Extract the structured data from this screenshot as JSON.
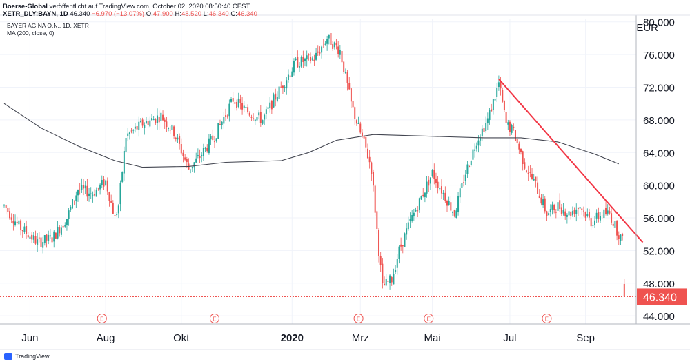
{
  "header": {
    "publisher": "Boerse-Global",
    "published_text": "veröffentlicht auf TradingView.com, October 02, 2020 08:50:40 CEST",
    "symbol_line": "XETR_DLY:BAYN, 1D",
    "last": "46.340",
    "change": "−6.970 (−13.07%)",
    "o_label": "O:",
    "o": "47.900",
    "h_label": "H:",
    "h": "48.520",
    "l_label": "L:",
    "l": "46.340",
    "c_label": "C:",
    "c": "46.340"
  },
  "legend": {
    "instrument": "BAYER AG NA O.N., 1D, XETR",
    "ma_label": "MA (200, close, 0)"
  },
  "footer": {
    "brand": "TradingView"
  },
  "colors": {
    "up": "#26a69a",
    "down": "#ef5350",
    "ma": "#434651",
    "trend": "#f23645",
    "grid": "#f0f3fa",
    "axis": "#131722"
  },
  "chart_data": {
    "type": "candlestick",
    "currency": "EUR",
    "ylim": [
      43,
      80.4
    ],
    "y_ticks": [
      44,
      48,
      52,
      56,
      60,
      64,
      68,
      72,
      76,
      80
    ],
    "y_tick_labels": [
      "44.000",
      "48.000",
      "52.000",
      "56.000",
      "60.000",
      "64.000",
      "68.000",
      "72.000",
      "76.000",
      "80.000"
    ],
    "x_labels": [
      "Jun",
      "Aug",
      "Okt",
      "2020",
      "Mrz",
      "Mai",
      "Jul",
      "Sep"
    ],
    "last_price": 46.34,
    "last_price_label": "46.340",
    "events": [
      "E",
      "E",
      "E",
      "E",
      "E"
    ],
    "price_path": [
      {
        "i": 0,
        "p": 57.5
      },
      {
        "i": 8,
        "p": 55.0
      },
      {
        "i": 18,
        "p": 53.0
      },
      {
        "i": 26,
        "p": 53.5
      },
      {
        "i": 34,
        "p": 56.0
      },
      {
        "i": 40,
        "p": 59.5
      },
      {
        "i": 48,
        "p": 59.0
      },
      {
        "i": 55,
        "p": 60.5
      },
      {
        "i": 60,
        "p": 56.0
      },
      {
        "i": 62,
        "p": 57.5
      },
      {
        "i": 66,
        "p": 66.0
      },
      {
        "i": 75,
        "p": 67.5
      },
      {
        "i": 85,
        "p": 68.5
      },
      {
        "i": 92,
        "p": 66.5
      },
      {
        "i": 100,
        "p": 62.0
      },
      {
        "i": 106,
        "p": 63.5
      },
      {
        "i": 114,
        "p": 66.0
      },
      {
        "i": 124,
        "p": 70.5
      },
      {
        "i": 132,
        "p": 69.0
      },
      {
        "i": 140,
        "p": 68.0
      },
      {
        "i": 150,
        "p": 72.0
      },
      {
        "i": 158,
        "p": 75.0
      },
      {
        "i": 168,
        "p": 75.5
      },
      {
        "i": 175,
        "p": 78.0
      },
      {
        "i": 182,
        "p": 76.5
      },
      {
        "i": 188,
        "p": 70.0
      },
      {
        "i": 192,
        "p": 67.0
      },
      {
        "i": 196,
        "p": 64.5
      },
      {
        "i": 199,
        "p": 62.0
      },
      {
        "i": 203,
        "p": 52.0
      },
      {
        "i": 205,
        "p": 47.5
      },
      {
        "i": 210,
        "p": 48.5
      },
      {
        "i": 214,
        "p": 52.0
      },
      {
        "i": 220,
        "p": 55.5
      },
      {
        "i": 226,
        "p": 58.5
      },
      {
        "i": 232,
        "p": 61.5
      },
      {
        "i": 238,
        "p": 59.0
      },
      {
        "i": 244,
        "p": 56.5
      },
      {
        "i": 250,
        "p": 61.5
      },
      {
        "i": 256,
        "p": 65.5
      },
      {
        "i": 262,
        "p": 68.0
      },
      {
        "i": 268,
        "p": 72.5
      },
      {
        "i": 272,
        "p": 67.5
      },
      {
        "i": 276,
        "p": 66.5
      },
      {
        "i": 282,
        "p": 62.5
      },
      {
        "i": 288,
        "p": 60.0
      },
      {
        "i": 294,
        "p": 56.5
      },
      {
        "i": 300,
        "p": 57.5
      },
      {
        "i": 306,
        "p": 56.5
      },
      {
        "i": 312,
        "p": 57.5
      },
      {
        "i": 318,
        "p": 55.5
      },
      {
        "i": 324,
        "p": 56.5
      },
      {
        "i": 328,
        "p": 56.5
      },
      {
        "i": 332,
        "p": 54.5
      },
      {
        "i": 335,
        "p": 53.2
      },
      {
        "i": 336,
        "p": 46.34
      }
    ],
    "ma200_path": [
      {
        "i": 0,
        "p": 70.0
      },
      {
        "i": 20,
        "p": 67.0
      },
      {
        "i": 40,
        "p": 64.8
      },
      {
        "i": 60,
        "p": 63.0
      },
      {
        "i": 75,
        "p": 62.2
      },
      {
        "i": 100,
        "p": 62.3
      },
      {
        "i": 120,
        "p": 62.8
      },
      {
        "i": 150,
        "p": 63.0
      },
      {
        "i": 165,
        "p": 64.0
      },
      {
        "i": 180,
        "p": 65.5
      },
      {
        "i": 200,
        "p": 66.2
      },
      {
        "i": 230,
        "p": 66.0
      },
      {
        "i": 260,
        "p": 65.8
      },
      {
        "i": 280,
        "p": 65.8
      },
      {
        "i": 300,
        "p": 65.3
      },
      {
        "i": 320,
        "p": 63.8
      },
      {
        "i": 333,
        "p": 62.6
      }
    ],
    "trendline": {
      "from": {
        "i": 268,
        "p": 73.0
      },
      "to": {
        "i": 346,
        "p": 53.0
      }
    }
  }
}
